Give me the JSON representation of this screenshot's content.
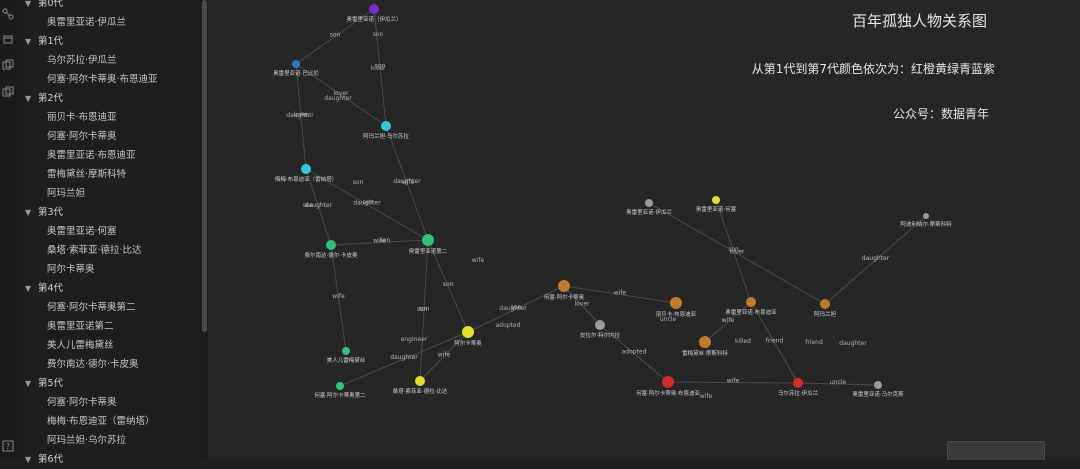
{
  "colors": {
    "red": "#d52a2a",
    "orange": "#c07a2c",
    "yellow": "#e6dc2c",
    "green": "#2fc37a",
    "cyan": "#32c8d8",
    "blue": "#2e78c8",
    "purple": "#7a2bc8",
    "gray": "#9a9a9a"
  },
  "icons": [
    "graph-icon",
    "cube-icon",
    "copy-icon",
    "help-icon"
  ],
  "sidebar": {
    "groups": [
      {
        "label": "第0代",
        "items": [
          "奥雷里亚诺·伊瓜兰"
        ]
      },
      {
        "label": "第1代",
        "items": [
          "乌尔苏拉·伊瓜兰",
          "何塞·阿尔卡蒂奥·布恩迪亚"
        ]
      },
      {
        "label": "第2代",
        "items": [
          "丽贝卡·布恩迪亚",
          "何塞·阿尔卡蒂奥",
          "奥雷里亚诺·布恩迪亚",
          "雷梅黛丝·摩斯科特",
          "阿玛兰妲"
        ]
      },
      {
        "label": "第3代",
        "items": [
          "奥雷里亚诺·何塞",
          "桑塔·索菲亚·德拉·比达",
          "阿尔卡蒂奥"
        ]
      },
      {
        "label": "第4代",
        "items": [
          "何塞·阿尔卡蒂奥第二",
          "奥雷里亚诺第二",
          "美人儿雷梅黛丝",
          "费尔南达·德尔·卡皮奥"
        ]
      },
      {
        "label": "第5代",
        "items": [
          "何塞·阿尔卡蒂奥",
          "梅梅·布恩迪亚（雷纳塔）",
          "阿玛兰妲·乌尔苏拉"
        ]
      },
      {
        "label": "第6代",
        "items": []
      }
    ]
  },
  "overlay": {
    "title": "百年孤独人物关系图",
    "subtitle": "从第1代到第7代颜色依次为：红橙黄绿青蓝紫",
    "footer": "公众号：数据青年"
  },
  "graph": {
    "nodes": [
      {
        "id": "n1",
        "label": "奥雷里亚诺（伊瓜兰）",
        "color": "purple"
      },
      {
        "id": "n2",
        "label": "奥雷里亚诺·巴比伦",
        "color": "blue"
      },
      {
        "id": "n3",
        "label": "阿玛兰妲·乌尔苏拉",
        "color": "cyan"
      },
      {
        "id": "n4",
        "label": "梅梅·布恩迪亚（雷纳塔）",
        "color": "cyan"
      },
      {
        "id": "n5",
        "label": "费尔南达·德尔·卡皮奥",
        "color": "green"
      },
      {
        "id": "n6",
        "label": "奥雷里亚诺第二",
        "color": "green"
      },
      {
        "id": "n7",
        "label": "美人儿雷梅黛丝",
        "color": "green"
      },
      {
        "id": "n8",
        "label": "何塞·阿尔卡蒂奥第二",
        "color": "green"
      },
      {
        "id": "n9",
        "label": "阿尔卡蒂奥",
        "color": "yellow"
      },
      {
        "id": "n10",
        "label": "桑塔·索菲亚·德拉·比达",
        "color": "yellow"
      },
      {
        "id": "n11",
        "label": "何塞·阿尔卡蒂奥",
        "color": "orange"
      },
      {
        "id": "n12",
        "label": "皮拉尔·特尔内拉",
        "color": "gray"
      },
      {
        "id": "n13",
        "label": "奥雷里亚诺·伊瓜兰",
        "color": "gray"
      },
      {
        "id": "n14",
        "label": "奥雷里亚诺·何塞",
        "color": "yellow"
      },
      {
        "id": "n15",
        "label": "丽贝卡·布恩迪亚",
        "color": "orange"
      },
      {
        "id": "n16",
        "label": "奥雷里亚诺·布恩迪亚",
        "color": "orange"
      },
      {
        "id": "n17",
        "label": "阿玛兰妲",
        "color": "orange"
      },
      {
        "id": "n18",
        "label": "雷梅黛丝·摩斯科特",
        "color": "orange"
      },
      {
        "id": "n19",
        "label": "阿波利纳尔·摩斯科特",
        "color": "gray"
      },
      {
        "id": "n20",
        "label": "何塞·阿尔卡蒂奥·布恩迪亚",
        "color": "red"
      },
      {
        "id": "n21",
        "label": "乌尔苏拉·伊瓜兰",
        "color": "red"
      },
      {
        "id": "n22",
        "label": "奥雷里亚诺·马尔克斯",
        "color": "gray"
      }
    ],
    "edges": [
      {
        "from": "n1",
        "to": "n2",
        "label": "son"
      },
      {
        "from": "n1",
        "to": "n3",
        "label": "son"
      },
      {
        "from": "n2",
        "to": "n3",
        "label": "lover"
      },
      {
        "from": "n2",
        "to": "n4",
        "label": "lover"
      },
      {
        "from": "n3",
        "to": "n6",
        "label": "daughter"
      },
      {
        "from": "n4",
        "to": "n6",
        "label": "daughter"
      },
      {
        "from": "n4",
        "to": "n5",
        "label": "daughter"
      },
      {
        "from": "n6",
        "to": "n5",
        "label": "wife"
      },
      {
        "from": "n6",
        "to": "n10",
        "label": "son"
      },
      {
        "from": "n6",
        "to": "n9",
        "label": "son"
      },
      {
        "from": "n5",
        "to": "n7",
        "label": "wife"
      },
      {
        "from": "n9",
        "to": "n8",
        "label": "daughter"
      },
      {
        "from": "n9",
        "to": "n10",
        "label": "wife"
      },
      {
        "from": "n11",
        "to": "n9",
        "label": "son"
      },
      {
        "from": "n11",
        "to": "n12",
        "label": "lover"
      },
      {
        "from": "n11",
        "to": "n15",
        "label": "wife"
      },
      {
        "from": "n12",
        "to": "n20",
        "label": "adopted"
      },
      {
        "from": "n16",
        "to": "n18",
        "label": "wife"
      },
      {
        "from": "n16",
        "to": "n14",
        "label": "son"
      },
      {
        "from": "n17",
        "to": "n19",
        "label": "daughter"
      },
      {
        "from": "n20",
        "to": "n21",
        "label": "wife"
      },
      {
        "from": "n21",
        "to": "n22",
        "label": "uncle"
      },
      {
        "from": "n17",
        "to": "n13",
        "label": "lover"
      },
      {
        "from": "n21",
        "to": "n16",
        "label": "friend"
      }
    ],
    "extra_labels": [
      "son",
      "lover",
      "daughter",
      "daughter",
      "son",
      "wife",
      "son",
      "son",
      "son",
      "wife",
      "daughter",
      "son",
      "adopted",
      "engineer",
      "uncle",
      "killed",
      "friend",
      "daughter",
      "wife"
    ]
  }
}
